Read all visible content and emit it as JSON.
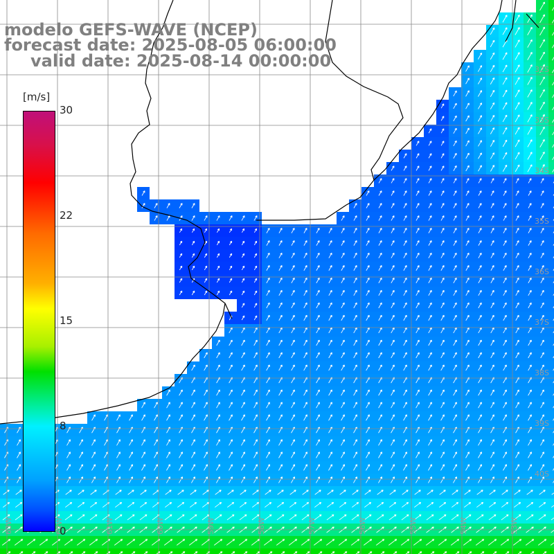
{
  "header": {
    "line1": "modelo GEFS-WAVE (NCEP)",
    "line2": "forecast date: 2025-08-05 06:00:00",
    "line3": "valid date: 2025-08-14 00:00:00"
  },
  "colorbar": {
    "unit": "[m/s]",
    "ticks": [
      "30",
      "22",
      "15",
      "8",
      "0"
    ],
    "tick_values": [
      30,
      22,
      15,
      8,
      0
    ],
    "min": 0,
    "max": 30,
    "colors": [
      "#0000ff",
      "#0050ff",
      "#00a0ff",
      "#00f0ff",
      "#00e000",
      "#ffff00",
      "#ff6a00",
      "#ff0000",
      "#c0107a"
    ]
  },
  "map": {
    "variable": "wind speed and direction",
    "arrow_color": "#ffffff",
    "land_color": "#ffffff",
    "coastline_color": "#000000",
    "grid_color": "#888888",
    "lat_labels": [
      "32S",
      "33S",
      "34S",
      "35S",
      "36S",
      "37S",
      "38S",
      "39S",
      "40S"
    ],
    "lon_labels": [
      "63W",
      "62W",
      "61W",
      "60W",
      "59W",
      "58W",
      "57W",
      "56W",
      "55W",
      "54W",
      "53W"
    ]
  }
}
